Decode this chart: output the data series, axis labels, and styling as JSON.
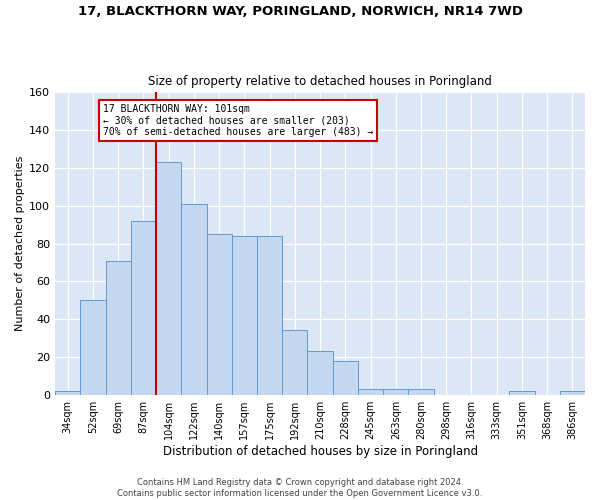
{
  "title1": "17, BLACKTHORN WAY, PORINGLAND, NORWICH, NR14 7WD",
  "title2": "Size of property relative to detached houses in Poringland",
  "xlabel": "Distribution of detached houses by size in Poringland",
  "ylabel": "Number of detached properties",
  "bar_color": "#c5d8f0",
  "bar_edge_color": "#5b9bd5",
  "plot_bg_color": "#dce6f4",
  "fig_bg_color": "#ffffff",
  "grid_color": "#ffffff",
  "categories": [
    "34sqm",
    "52sqm",
    "69sqm",
    "87sqm",
    "104sqm",
    "122sqm",
    "140sqm",
    "157sqm",
    "175sqm",
    "192sqm",
    "210sqm",
    "228sqm",
    "245sqm",
    "263sqm",
    "280sqm",
    "298sqm",
    "316sqm",
    "333sqm",
    "351sqm",
    "368sqm",
    "386sqm"
  ],
  "values": [
    2,
    50,
    71,
    92,
    123,
    101,
    85,
    84,
    84,
    34,
    23,
    18,
    3,
    3,
    3,
    0,
    0,
    0,
    2,
    0,
    2
  ],
  "red_line_index": 4,
  "annotation_line1": "17 BLACKTHORN WAY: 101sqm",
  "annotation_line2": "← 30% of detached houses are smaller (203)",
  "annotation_line3": "70% of semi-detached houses are larger (483) →",
  "annotation_box_facecolor": "#ffffff",
  "annotation_box_edgecolor": "#cc0000",
  "red_line_color": "#cc0000",
  "ylim": [
    0,
    160
  ],
  "yticks": [
    0,
    20,
    40,
    60,
    80,
    100,
    120,
    140,
    160
  ],
  "footer1": "Contains HM Land Registry data © Crown copyright and database right 2024.",
  "footer2": "Contains public sector information licensed under the Open Government Licence v3.0."
}
